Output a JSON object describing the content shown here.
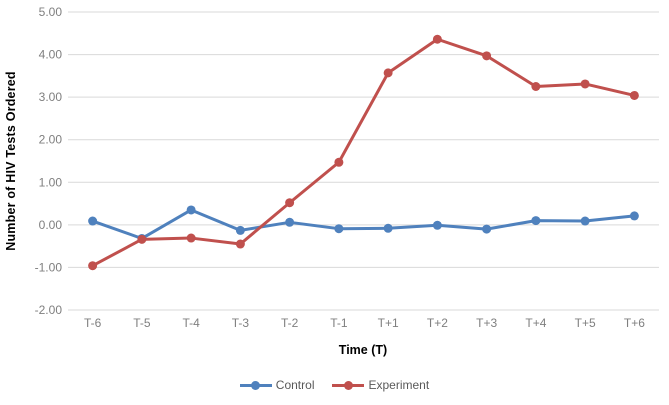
{
  "chart": {
    "background": "#ffffff",
    "grid_color": "#d9d9d9",
    "tick_label_color": "#7f7f7f",
    "axis_title_color": "#000000",
    "legend_text_color": "#595959",
    "y_axis_title": "Number of HIV Tests Ordered",
    "x_axis_title": "Time (T)"
  },
  "chart_data": {
    "type": "line",
    "title": "",
    "xlabel": "Time (T)",
    "ylabel": "Number of HIV Tests Ordered",
    "categories": [
      "T-6",
      "T-5",
      "T-4",
      "T-3",
      "T-2",
      "T-1",
      "T+1",
      "T+2",
      "T+3",
      "T+4",
      "T+5",
      "T+6"
    ],
    "series": [
      {
        "name": "Control",
        "color": "#4F81BD",
        "marker": "circle",
        "values": [
          0.09,
          -0.32,
          0.35,
          -0.13,
          0.06,
          -0.09,
          -0.08,
          -0.01,
          -0.1,
          0.1,
          0.09,
          0.21
        ]
      },
      {
        "name": "Experiment",
        "color": "#C0504D",
        "marker": "circle",
        "values": [
          -0.96,
          -0.34,
          -0.31,
          -0.45,
          0.52,
          1.47,
          3.57,
          4.36,
          3.97,
          3.25,
          3.31,
          3.04
        ]
      }
    ],
    "ylim": [
      -2,
      5
    ],
    "yticks": [
      "5.00",
      "4.00",
      "3.00",
      "2.00",
      "1.00",
      "0.00",
      "-1.00",
      "-2.00"
    ],
    "grid": true,
    "legend_position": "bottom"
  }
}
